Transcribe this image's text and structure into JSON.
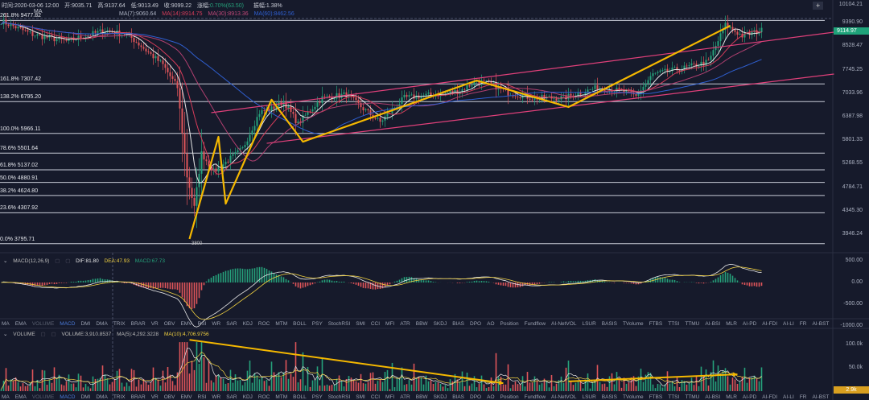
{
  "header": {
    "time": "时间:2020-03-06 12:00",
    "open": "开:9035.71",
    "high": "高:9137.64",
    "low": "低:9013.49",
    "close": "收:9099.22",
    "change_label": "涨幅:",
    "change": "0.70%(63.50)",
    "amplitude": "振幅:1.38%"
  },
  "ma_legend": {
    "label": "MA",
    "ma7": "MA(7):9060.64",
    "ma14": "MA(14):8914.75",
    "ma30": "MA(30):8913.36",
    "ma_long": "MA(60):8462.56"
  },
  "colors": {
    "up": "#26a17b",
    "down": "#e0555a",
    "ma7": "#e8e8e8",
    "ma14": "#d63c5a",
    "ma30": "#b04070",
    "ma_long": "#2f5fd0",
    "annotation": "#f5b800",
    "channel": "#e0407a",
    "price_badge": "#1fa37a",
    "volume_badge": "#d9a020"
  },
  "price_axis": {
    "scale": "log",
    "ticks": [
      "10104.21",
      "9390.90",
      "8528.47",
      "7745.25",
      "7033.96",
      "6387.98",
      "5801.33",
      "5268.55",
      "4784.71",
      "4345.30",
      "3946.24"
    ],
    "current_price": "9114.97",
    "add_icon": "plus-icon"
  },
  "fib_levels": [
    {
      "label": "261.8% 9477.82",
      "price": 9477.82
    },
    {
      "label": "161.8% 7307.42",
      "price": 7307.42
    },
    {
      "label": "138.2% 6795.20",
      "price": 6795.2
    },
    {
      "label": "100.0% 5966.11",
      "price": 5966.11
    },
    {
      "label": "78.6% 5501.64",
      "price": 5501.64
    },
    {
      "label": "61.8% 5137.02",
      "price": 5137.02
    },
    {
      "label": "50.0% 4880.91",
      "price": 4880.91
    },
    {
      "label": "38.2% 4624.80",
      "price": 4624.8
    },
    {
      "label": "23.6% 4307.92",
      "price": 4307.92
    },
    {
      "label": "0.0% 3795.71",
      "price": 3795.71
    }
  ],
  "low_marker": "3800",
  "chart_data": {
    "type": "candlestick",
    "close_path": [
      [
        0,
        9450
      ],
      [
        13,
        8950
      ],
      [
        27,
        8700
      ],
      [
        43,
        9100
      ],
      [
        53,
        8900
      ],
      [
        67,
        7900
      ],
      [
        73,
        7200
      ],
      [
        77,
        5000
      ],
      [
        80,
        4400
      ],
      [
        83,
        5500
      ],
      [
        88,
        5100
      ],
      [
        93,
        5300
      ],
      [
        100,
        5600
      ],
      [
        107,
        6500
      ],
      [
        112,
        6600
      ],
      [
        117,
        6800
      ],
      [
        123,
        6200
      ],
      [
        127,
        6500
      ],
      [
        133,
        6900
      ],
      [
        143,
        7000
      ],
      [
        150,
        6600
      ],
      [
        157,
        6250
      ],
      [
        167,
        6900
      ],
      [
        180,
        7000
      ],
      [
        190,
        7100
      ],
      [
        197,
        7400
      ],
      [
        203,
        7300
      ],
      [
        210,
        7050
      ],
      [
        220,
        6900
      ],
      [
        233,
        6900
      ],
      [
        247,
        7200
      ],
      [
        257,
        7100
      ],
      [
        263,
        6950
      ],
      [
        270,
        7600
      ],
      [
        283,
        7800
      ],
      [
        293,
        8000
      ],
      [
        300,
        9300
      ],
      [
        307,
        8900
      ],
      [
        315,
        9100
      ]
    ],
    "annotation_lines": [
      [
        [
          78,
          3870
        ],
        [
          90,
          5882
        ],
        [
          93,
          4472
        ],
        [
          112,
          6848
        ],
        [
          125,
          5765
        ],
        [
          197,
          7410
        ],
        [
          235,
          6646
        ],
        [
          302,
          9273
        ]
      ]
    ],
    "channel_lines": [
      [
        [
          87,
          6494
        ],
        [
          345,
          9032
        ]
      ],
      [
        [
          110,
          5728
        ],
        [
          345,
          7608
        ]
      ]
    ],
    "volume_arrows": [
      [
        [
          78,
          110000
        ],
        [
          208,
          17000
        ]
      ],
      [
        [
          235,
          21000
        ],
        [
          305,
          36000
        ]
      ]
    ]
  },
  "macd": {
    "title": "MACD(12,26,9)",
    "dif": "DIF:81.80",
    "dea": "DEA:47.93",
    "macd": "MACD:67.73",
    "ticks": [
      "500.00",
      "0.00",
      "-500.00",
      "-1000.00"
    ]
  },
  "volume": {
    "title": "VOLUME",
    "volume": "VOLUME:3,910.8537",
    "ma5": "MA(5):4,292.3228",
    "ma10": "MA(10):4,706.9756",
    "ticks": [
      "100.0k",
      "50.0k"
    ],
    "current": "2.9k"
  },
  "indicator_tabs": [
    "MA",
    "EMA",
    "VOLUME",
    "MACD",
    "DMI",
    "DMA",
    "TRIX",
    "BRAR",
    "VR",
    "OBV",
    "EMV",
    "RSI",
    "WR",
    "SAR",
    "KDJ",
    "ROC",
    "MTM",
    "BOLL",
    "PSY",
    "StochRSI",
    "SMI",
    "CCI",
    "MFI",
    "ATR",
    "BBW",
    "SKDJ",
    "BIAS",
    "DPO",
    "AO",
    "Position",
    "Fundflow",
    "AI-NetVOL",
    "LSUR",
    "BASIS",
    "TVolume",
    "FTBS",
    "TTSI",
    "TTMU",
    "AI-BSI",
    "MLR",
    "AI-PD",
    "AI-FDI",
    "AI-LI",
    "FR",
    "AI-BST"
  ],
  "active_tab": "MACD"
}
